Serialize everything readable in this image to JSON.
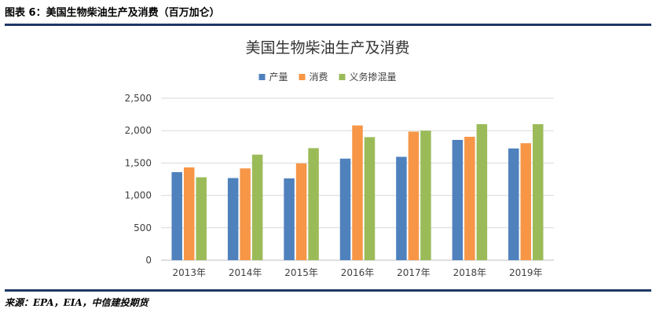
{
  "figure": {
    "caption": "图表 6：美国生物柴油生产及消费（百万加仑）",
    "source": "来源：EPA，EIA，中信建投期货"
  },
  "chart_data": {
    "type": "bar",
    "title": "美国生物柴油生产及消费",
    "categories": [
      "2013年",
      "2014年",
      "2015年",
      "2016年",
      "2017年",
      "2018年",
      "2019年"
    ],
    "series": [
      {
        "name": "产量",
        "color": "#4f81bd",
        "values": [
          1359,
          1268,
          1263,
          1568,
          1596,
          1857,
          1725
        ]
      },
      {
        "name": "消费",
        "color": "#f79646",
        "values": [
          1432,
          1417,
          1494,
          2080,
          1985,
          1905,
          1806
        ]
      },
      {
        "name": "义务掺混量",
        "color": "#9bbb59",
        "values": [
          1280,
          1630,
          1730,
          1900,
          2000,
          2100,
          2100
        ]
      }
    ],
    "ylim": [
      0,
      2500
    ],
    "yticks": [
      0,
      500,
      1000,
      1500,
      2000,
      2500
    ],
    "ytick_labels": [
      "0",
      "500",
      "1,000",
      "1,500",
      "2,000",
      "2,500"
    ],
    "grid": true,
    "legend_position": "top"
  }
}
